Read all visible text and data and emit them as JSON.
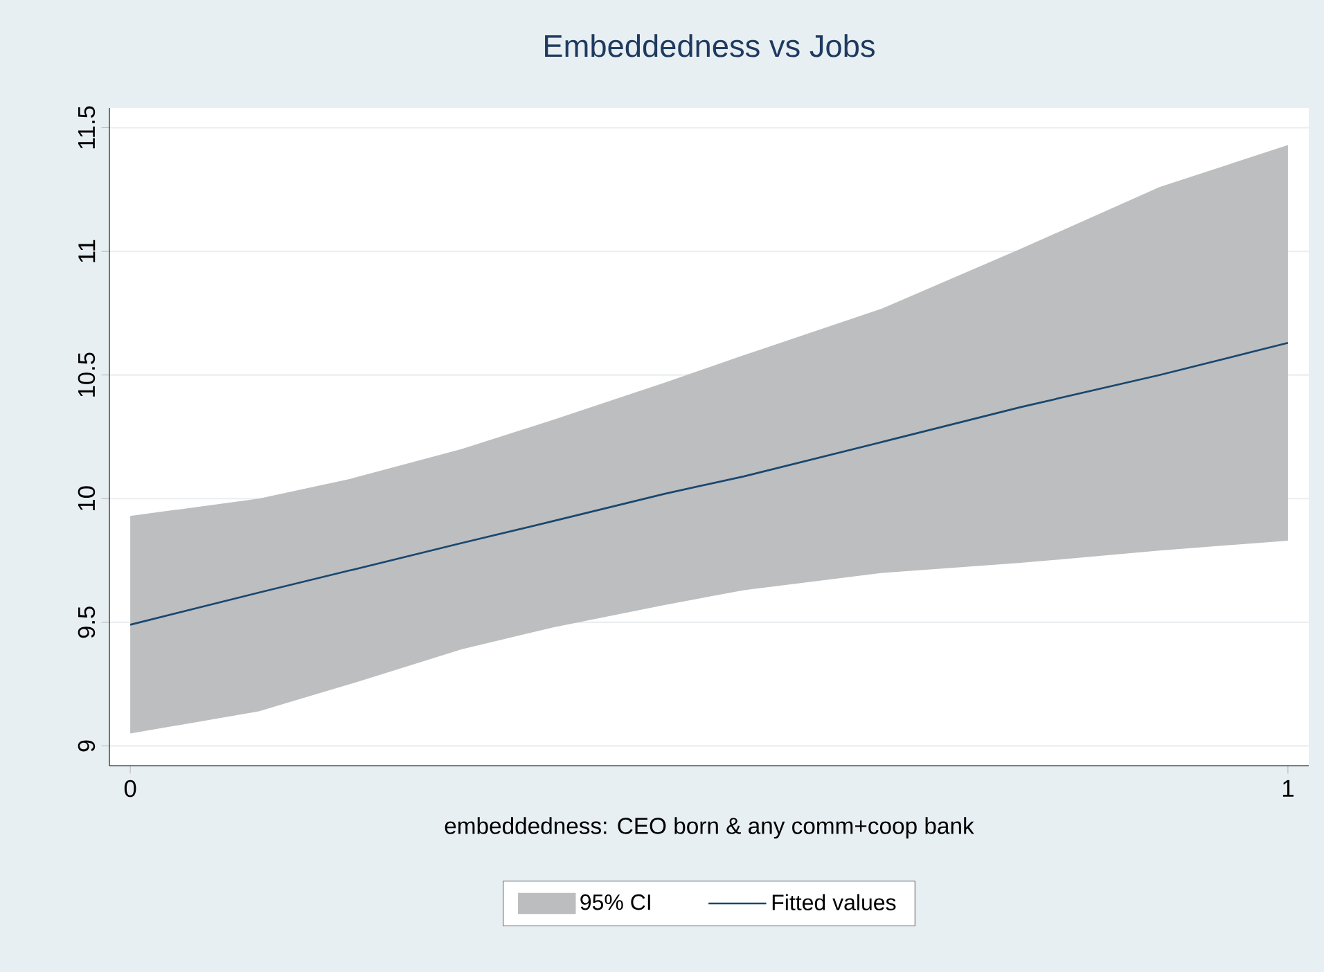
{
  "chart_data": {
    "type": "line",
    "title": "Embeddedness vs Jobs",
    "xlabel": "embeddedness: CEO born & any comm+coop bank",
    "annotations": [
      "95% CI"
    ],
    "series": [
      {
        "name": "Fitted values",
        "color": "#1a476f",
        "x": [
          0,
          0.111,
          0.19,
          0.286,
          0.366,
          0.462,
          0.53,
          0.65,
          0.769,
          0.889,
          1
        ],
        "values": [
          9.49,
          9.62,
          9.71,
          9.82,
          9.91,
          10.02,
          10.09,
          10.23,
          10.37,
          10.5,
          10.63
        ],
        "lower": [
          9.05,
          9.14,
          9.25,
          9.39,
          9.48,
          9.57,
          9.63,
          9.7,
          9.74,
          9.79,
          9.83
        ],
        "upper": [
          9.93,
          10.0,
          10.08,
          10.2,
          10.32,
          10.47,
          10.58,
          10.77,
          11.01,
          11.26,
          11.43
        ]
      }
    ],
    "xlim": [
      -0.018,
      1.018
    ],
    "ylim": [
      8.92,
      11.58
    ],
    "xticks": [
      0,
      1
    ],
    "yticks": [
      9,
      9.5,
      10,
      10.5,
      11,
      11.5
    ],
    "grid": "y",
    "legend": "bottom"
  }
}
